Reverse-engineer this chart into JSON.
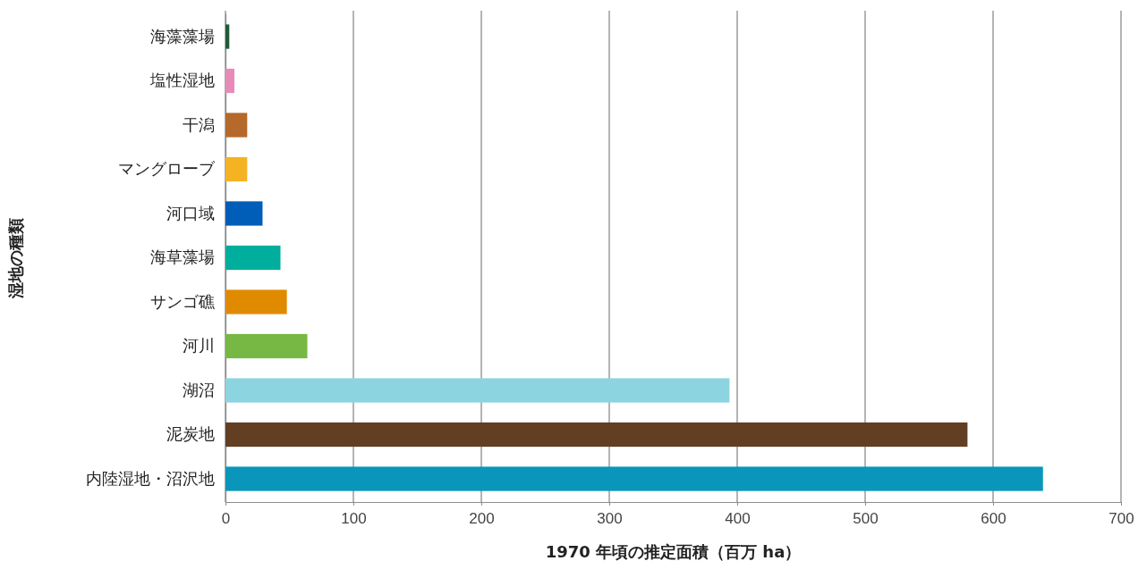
{
  "chart_data": {
    "type": "bar",
    "orientation": "horizontal",
    "xlabel": "1970 年頃の推定面積（百万 ha）",
    "ylabel": "湿地の種類",
    "categories": [
      "海藻藻場",
      "塩性湿地",
      "干潟",
      "マングローブ",
      "河口域",
      "海草藻場",
      "サンゴ礁",
      "河川",
      "湖沼",
      "泥炭地",
      "内陸湿地・沼沢地"
    ],
    "values": [
      3,
      7,
      17,
      17,
      29,
      43,
      48,
      64,
      394,
      580,
      639
    ],
    "colors": [
      "#1e5c3a",
      "#e88bb8",
      "#b5692a",
      "#f5b223",
      "#005eb8",
      "#00ae9e",
      "#e08a00",
      "#76b843",
      "#8cd5e0",
      "#623e22",
      "#0a96bb"
    ],
    "xlim": [
      0,
      700
    ],
    "xticks": [
      0,
      100,
      200,
      300,
      400,
      500,
      600,
      700
    ],
    "grid": "x"
  }
}
